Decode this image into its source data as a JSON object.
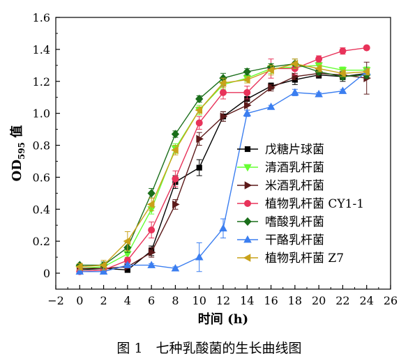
{
  "chart_data": {
    "type": "line",
    "title": "",
    "caption": "图 1　七种乳酸菌的生长曲线图",
    "xlabel": "时间 (h)",
    "ylabel_main": "OD",
    "ylabel_sub": "595",
    "ylabel_suffix": " 值",
    "xlim": [
      -2,
      26
    ],
    "ylim": [
      -0.1,
      1.6
    ],
    "x_ticks": [
      -2,
      0,
      2,
      4,
      6,
      8,
      10,
      12,
      14,
      16,
      18,
      20,
      22,
      24,
      26
    ],
    "x_tick_labels": [
      "−2",
      "0",
      "2",
      "4",
      "6",
      "8",
      "10",
      "12",
      "14",
      "16",
      "18",
      "20",
      "22",
      "24",
      "26"
    ],
    "y_ticks": [
      0,
      0.2,
      0.4,
      0.6,
      0.8,
      1.0,
      1.2,
      1.4,
      1.6
    ],
    "y_tick_labels": [
      "0",
      "0.2",
      "0.4",
      "0.6",
      "0.8",
      "1.0",
      "1.2",
      "1.4",
      "1.6"
    ],
    "grid": false,
    "legend_position": "right",
    "x": [
      0,
      2,
      4,
      6,
      8,
      10,
      12,
      14,
      16,
      18,
      20,
      22,
      24
    ],
    "series": [
      {
        "name": "戊糖片球菌",
        "color": "#000000",
        "marker": "square",
        "values": [
          0.02,
          0.03,
          0.02,
          0.14,
          0.57,
          0.66,
          0.98,
          1.09,
          1.17,
          1.21,
          1.24,
          1.23,
          1.25
        ],
        "errors": [
          0.01,
          0.01,
          0.01,
          0.03,
          0.04,
          0.05,
          0.03,
          0.03,
          0.02,
          0.03,
          0.02,
          0.03,
          0.03
        ]
      },
      {
        "name": "清酒乳杆菌",
        "color": "#66ff33",
        "marker": "triangle-down",
        "values": [
          0.03,
          0.04,
          0.12,
          0.4,
          0.78,
          1.02,
          1.18,
          1.22,
          1.28,
          1.29,
          1.3,
          1.27,
          1.27
        ],
        "errors": [
          0.01,
          0.02,
          0.03,
          0.03,
          0.03,
          0.03,
          0.03,
          0.02,
          0.03,
          0.02,
          0.02,
          0.02,
          0.02
        ]
      },
      {
        "name": "米酒乳杆菌",
        "color": "#5c1a1a",
        "marker": "triangle-right",
        "values": [
          0.03,
          0.03,
          0.04,
          0.13,
          0.43,
          0.84,
          0.98,
          1.05,
          1.16,
          1.23,
          1.25,
          1.24,
          1.22
        ],
        "errors": [
          0.01,
          0.01,
          0.01,
          0.03,
          0.03,
          0.04,
          0.03,
          0.03,
          0.02,
          0.02,
          0.02,
          0.02,
          0.1
        ]
      },
      {
        "name": "植物乳杆菌 CY1-1",
        "color": "#e8335a",
        "marker": "circle",
        "values": [
          0.01,
          0.02,
          0.08,
          0.27,
          0.59,
          0.94,
          1.13,
          1.13,
          1.28,
          1.28,
          1.34,
          1.39,
          1.41
        ],
        "errors": [
          0.01,
          0.01,
          0.02,
          0.05,
          0.05,
          0.04,
          0.04,
          0.04,
          0.06,
          0.04,
          0.02,
          0.02,
          0.01
        ]
      },
      {
        "name": "嗜酸乳杆菌",
        "color": "#1a6e1a",
        "marker": "diamond",
        "values": [
          0.05,
          0.05,
          0.16,
          0.5,
          0.87,
          1.09,
          1.22,
          1.26,
          1.29,
          1.31,
          1.26,
          1.23,
          1.24
        ],
        "errors": [
          0.01,
          0.02,
          0.03,
          0.03,
          0.02,
          0.02,
          0.03,
          0.02,
          0.02,
          0.03,
          0.02,
          0.02,
          0.02
        ]
      },
      {
        "name": "干酪乳杆菌",
        "color": "#3b7ef0",
        "marker": "triangle-up",
        "values": [
          0.01,
          0.01,
          0.05,
          0.05,
          0.03,
          0.1,
          0.28,
          1.0,
          1.04,
          1.13,
          1.12,
          1.14,
          1.26
        ],
        "errors": [
          0.01,
          0.01,
          0.01,
          0.01,
          0.01,
          0.09,
          0.06,
          0.02,
          0.01,
          0.02,
          0.01,
          0.01,
          0.02
        ]
      },
      {
        "name": "植物乳杆菌 Z7",
        "color": "#c9a21a",
        "marker": "triangle-left",
        "values": [
          0.04,
          0.05,
          0.2,
          0.43,
          0.77,
          1.02,
          1.19,
          1.21,
          1.27,
          1.31,
          1.28,
          1.25,
          1.26
        ],
        "errors": [
          0.02,
          0.03,
          0.06,
          0.04,
          0.03,
          0.02,
          0.03,
          0.02,
          0.03,
          0.03,
          0.02,
          0.02,
          0.02
        ]
      }
    ]
  }
}
